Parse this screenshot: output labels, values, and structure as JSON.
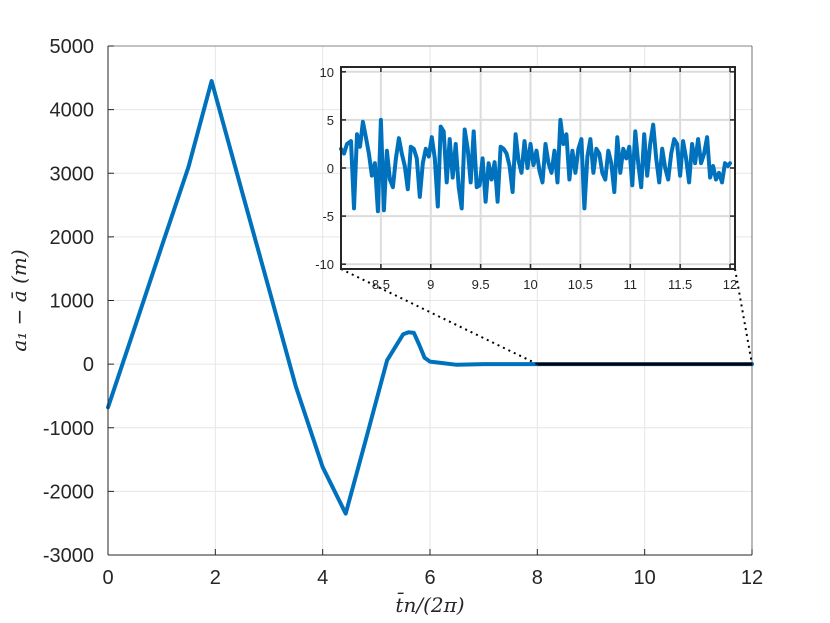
{
  "chart_data": [
    {
      "type": "line",
      "title": "",
      "xlabel": "t̄n/(2π)",
      "ylabel": "a₁ − ā (m)",
      "xlim": [
        0,
        12
      ],
      "ylim": [
        -3000,
        5000
      ],
      "xticks": [
        0,
        2,
        4,
        6,
        8,
        10,
        12
      ],
      "xtick_labels": [
        "0",
        "2",
        "4",
        "6",
        "8",
        "10",
        "12"
      ],
      "yticks": [
        -3000,
        -2000,
        -1000,
        0,
        1000,
        2000,
        3000,
        4000,
        5000
      ],
      "ytick_labels": [
        "-3000",
        "-2000",
        "-1000",
        "0",
        "1000",
        "2000",
        "3000",
        "4000",
        "5000"
      ],
      "grid": true,
      "series": [
        {
          "color": "#0072bd",
          "x": [
            0,
            0.5,
            1.0,
            1.5,
            1.93,
            2.5,
            3.0,
            3.5,
            4.0,
            4.43,
            4.8,
            5.2,
            5.5,
            5.6,
            5.7,
            5.8,
            5.9,
            6.0,
            6.2,
            6.5,
            7.0,
            7.5,
            8.0,
            12.0
          ],
          "y": [
            -680,
            580,
            1850,
            3100,
            4450,
            2700,
            1180,
            -350,
            -1620,
            -2350,
            -1200,
            60,
            470,
            500,
            490,
            300,
            100,
            40,
            20,
            -10,
            0,
            0,
            0,
            0
          ]
        }
      ],
      "highlight": {
        "x_from": 8,
        "x_to": 12,
        "y": 0,
        "color": "#000000"
      }
    },
    {
      "type": "line",
      "title": "",
      "xlim": [
        8.1,
        12.05
      ],
      "ylim": [
        -10.5,
        10.5
      ],
      "xticks": [
        8.5,
        9,
        9.5,
        10,
        10.5,
        11,
        11.5,
        12
      ],
      "xtick_labels": [
        "8.5",
        "9",
        "9.5",
        "10",
        "10.5",
        "11",
        "11.5",
        "12"
      ],
      "yticks": [
        -10,
        -5,
        0,
        5,
        10
      ],
      "ytick_labels": [
        "-10",
        "-5",
        "0",
        "5",
        "10"
      ],
      "grid": true,
      "series": [
        {
          "color": "#0072bd",
          "x": [
            8.1,
            8.13,
            8.16,
            8.2,
            8.23,
            8.26,
            8.29,
            8.32,
            8.35,
            8.38,
            8.41,
            8.44,
            8.47,
            8.5,
            8.53,
            8.56,
            8.59,
            8.62,
            8.65,
            8.68,
            8.71,
            8.74,
            8.77,
            8.8,
            8.83,
            8.86,
            8.89,
            8.92,
            8.95,
            8.98,
            9.01,
            9.04,
            9.07,
            9.1,
            9.13,
            9.16,
            9.19,
            9.22,
            9.25,
            9.28,
            9.31,
            9.34,
            9.37,
            9.4,
            9.43,
            9.46,
            9.49,
            9.52,
            9.55,
            9.58,
            9.61,
            9.64,
            9.67,
            9.7,
            9.73,
            9.76,
            9.79,
            9.82,
            9.85,
            9.88,
            9.91,
            9.94,
            9.97,
            10.0,
            10.03,
            10.06,
            10.09,
            10.12,
            10.15,
            10.18,
            10.21,
            10.24,
            10.27,
            10.3,
            10.33,
            10.36,
            10.39,
            10.42,
            10.45,
            10.48,
            10.51,
            10.54,
            10.57,
            10.6,
            10.63,
            10.66,
            10.69,
            10.72,
            10.75,
            10.78,
            10.81,
            10.84,
            10.87,
            10.9,
            10.93,
            10.96,
            10.99,
            11.02,
            11.05,
            11.08,
            11.11,
            11.14,
            11.17,
            11.2,
            11.23,
            11.26,
            11.29,
            11.32,
            11.35,
            11.38,
            11.41,
            11.44,
            11.47,
            11.5,
            11.53,
            11.56,
            11.59,
            11.62,
            11.65,
            11.68,
            11.71,
            11.74,
            11.77,
            11.8,
            11.83,
            11.86,
            11.89,
            11.92,
            11.95,
            11.98,
            12.0
          ],
          "y": [
            2.0,
            1.5,
            2.5,
            2.8,
            -4.2,
            3.5,
            2.2,
            4.8,
            3.2,
            1.5,
            -0.8,
            0.5,
            -4.5,
            5.0,
            -4.4,
            1.8,
            -1.2,
            -2.0,
            1.0,
            3.1,
            1.5,
            0.2,
            -2.2,
            2.2,
            2.0,
            1.0,
            -3.0,
            0.5,
            2.0,
            1.2,
            3.2,
            1.0,
            -4.0,
            4.3,
            3.8,
            -1.5,
            3.0,
            -1.0,
            2.5,
            -2.0,
            -4.2,
            4.0,
            2.0,
            -1.5,
            3.8,
            -2.0,
            -1.8,
            1.0,
            -3.5,
            0.5,
            -1.2,
            0.6,
            -3.5,
            2.2,
            2.0,
            1.5,
            0.2,
            -2.5,
            3.5,
            0.8,
            -0.5,
            2.8,
            0.0,
            2.5,
            0.3,
            1.8,
            -0.3,
            -1.5,
            2.5,
            0.5,
            -0.5,
            1.8,
            -1.5,
            5.0,
            2.5,
            3.5,
            -1.2,
            1.8,
            -0.5,
            2.0,
            3.0,
            -4.2,
            1.2,
            3.0,
            -0.5,
            2.0,
            1.5,
            -0.5,
            -1.2,
            1.8,
            0.5,
            -2.5,
            3.2,
            -0.5,
            2.0,
            1.0,
            2.2,
            -1.8,
            3.8,
            0.5,
            -2.0,
            3.5,
            -0.8,
            2.5,
            4.5,
            1.0,
            -1.5,
            2.0,
            0.0,
            -1.2,
            1.5,
            3.0,
            2.5,
            -0.8,
            2.8,
            1.0,
            -1.5,
            2.5,
            0.5,
            3.0,
            0.5,
            1.5,
            3.2,
            -1.0,
            0.2,
            -1.2,
            -0.5,
            -1.5,
            0.5,
            0.2,
            0.5
          ]
        }
      ]
    }
  ]
}
